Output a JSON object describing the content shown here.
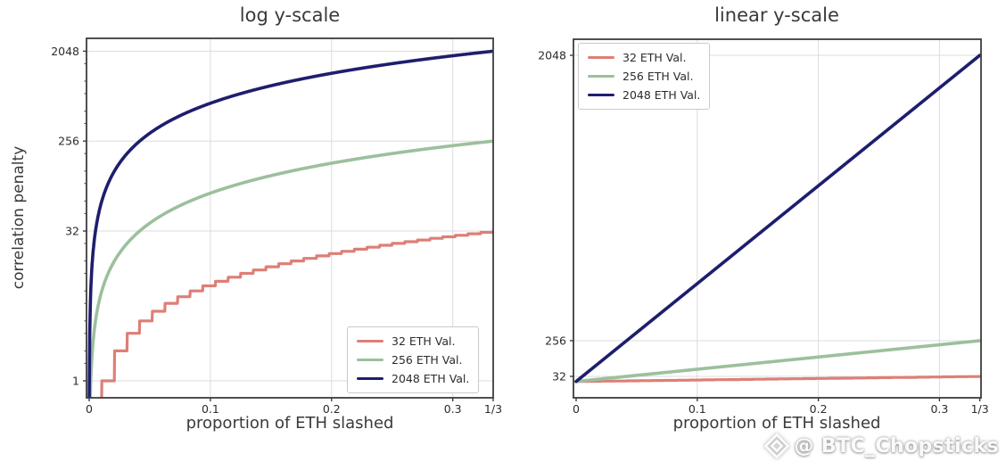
{
  "watermark": {
    "icon": "diamond-logo-icon",
    "text": "@ BTC_Chopsticks"
  },
  "chart_data": {
    "type": "line",
    "formula": "penalty = min(balance, 3 * balance * proportion_slashed); 32 ETH curve floored to whole ETH (stepped)",
    "x_axis": {
      "label": "proportion of ETH slashed",
      "tick_labels": [
        "0",
        "0.1",
        "0.2",
        "0.3",
        "1/3"
      ],
      "tick_values": [
        0,
        0.1,
        0.2,
        0.3,
        0.33333
      ],
      "range": [
        0,
        0.33333
      ]
    },
    "series": [
      {
        "name": "32 ETH Val.",
        "color": "#dd7f76",
        "balance_eth": 32,
        "stepped": true,
        "x": [
          0,
          0.05,
          0.1,
          0.15,
          0.2,
          0.25,
          0.3,
          0.33333
        ],
        "y": [
          0,
          4,
          9,
          14,
          19,
          24,
          28,
          32
        ]
      },
      {
        "name": "256 ETH Val.",
        "color": "#9cc09c",
        "balance_eth": 256,
        "stepped": false,
        "x": [
          0,
          0.05,
          0.1,
          0.15,
          0.2,
          0.25,
          0.3,
          0.33333
        ],
        "y": [
          0,
          38,
          77,
          115,
          154,
          192,
          230,
          256
        ]
      },
      {
        "name": "2048 ETH Val.",
        "color": "#1e1e6e",
        "balance_eth": 2048,
        "stepped": false,
        "x": [
          0,
          0.05,
          0.1,
          0.15,
          0.2,
          0.25,
          0.3,
          0.33333
        ],
        "y": [
          0,
          307,
          614,
          922,
          1229,
          1536,
          1843,
          2048
        ]
      }
    ],
    "charts": [
      {
        "title": "log y-scale",
        "ylabel": "correlation penalty",
        "yscale": "log2",
        "ytick_labels": [
          "1",
          "32",
          "256",
          "2048"
        ],
        "ytick_values": [
          1,
          32,
          256,
          2048
        ],
        "ylim": [
          0.68,
          2760
        ],
        "legend_position": "lower right",
        "grid": true
      },
      {
        "title": "linear y-scale",
        "ylabel": "",
        "yscale": "linear",
        "ytick_labels": [
          "32",
          "256",
          "2048"
        ],
        "ytick_values": [
          32,
          256,
          2048
        ],
        "ylim": [
          -102,
          2150
        ],
        "legend_position": "upper left",
        "grid": true
      }
    ]
  },
  "colors": {
    "grid": "#dcdcdc",
    "spine": "#3c3c3c",
    "tick_text": "#2b2b2b",
    "title_text": "#3a3a3a"
  }
}
